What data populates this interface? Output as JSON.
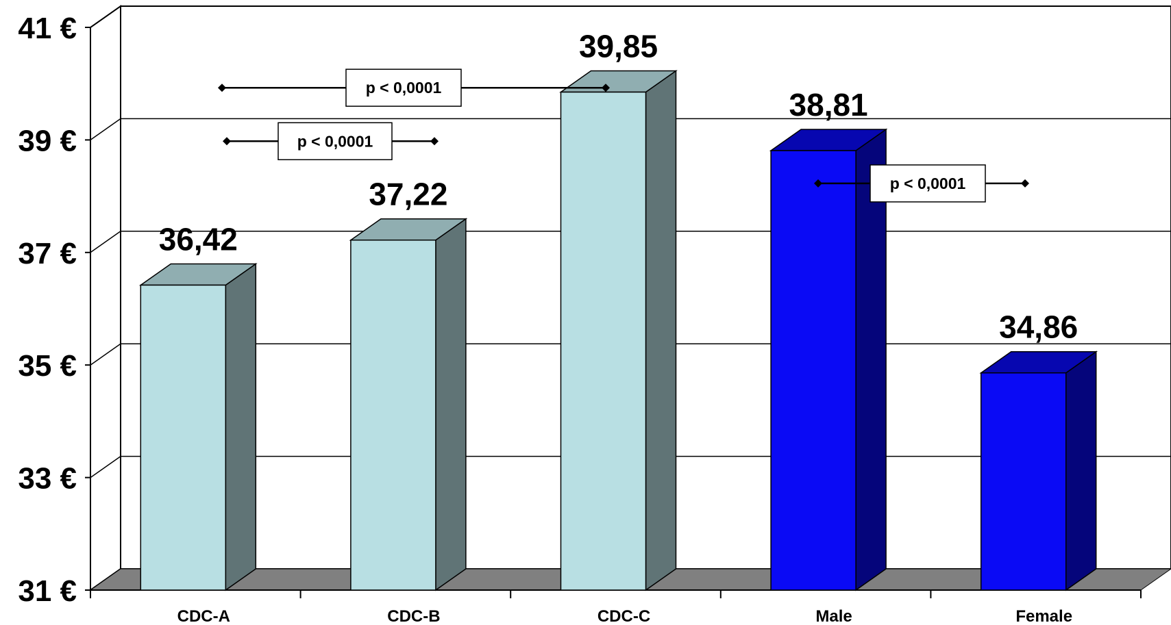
{
  "chart_data": {
    "type": "bar",
    "title": "",
    "xlabel": "",
    "ylabel": "",
    "ylim": [
      31,
      41
    ],
    "y_tick_values": [
      31,
      33,
      35,
      37,
      39,
      41
    ],
    "y_tick_labels": [
      "31 €",
      "33 €",
      "35 €",
      "37 €",
      "39 €",
      "41 €"
    ],
    "grid": "horizontal",
    "style": "3d-column",
    "categories": [
      "CDC-A",
      "CDC-B",
      "CDC-C",
      "Male",
      "Female"
    ],
    "values": [
      36.42,
      37.22,
      39.85,
      38.81,
      34.86
    ],
    "value_labels": [
      "36,42",
      "37,22",
      "39,85",
      "38,81",
      "34,86"
    ],
    "bar_colors": [
      "#b8dfe3",
      "#b8dfe3",
      "#b8dfe3",
      "#0a0af5",
      "#0a0af5"
    ],
    "annotations": [
      {
        "text": "p < 0,0001",
        "from": "CDC-A",
        "to": "CDC-C",
        "y": 39.55
      },
      {
        "text": "p < 0,0001",
        "from": "CDC-A",
        "to": "CDC-B",
        "y": 38.6
      },
      {
        "text": "p < 0,0001",
        "from": "Male",
        "to": "Female",
        "y": 37.85
      }
    ]
  }
}
